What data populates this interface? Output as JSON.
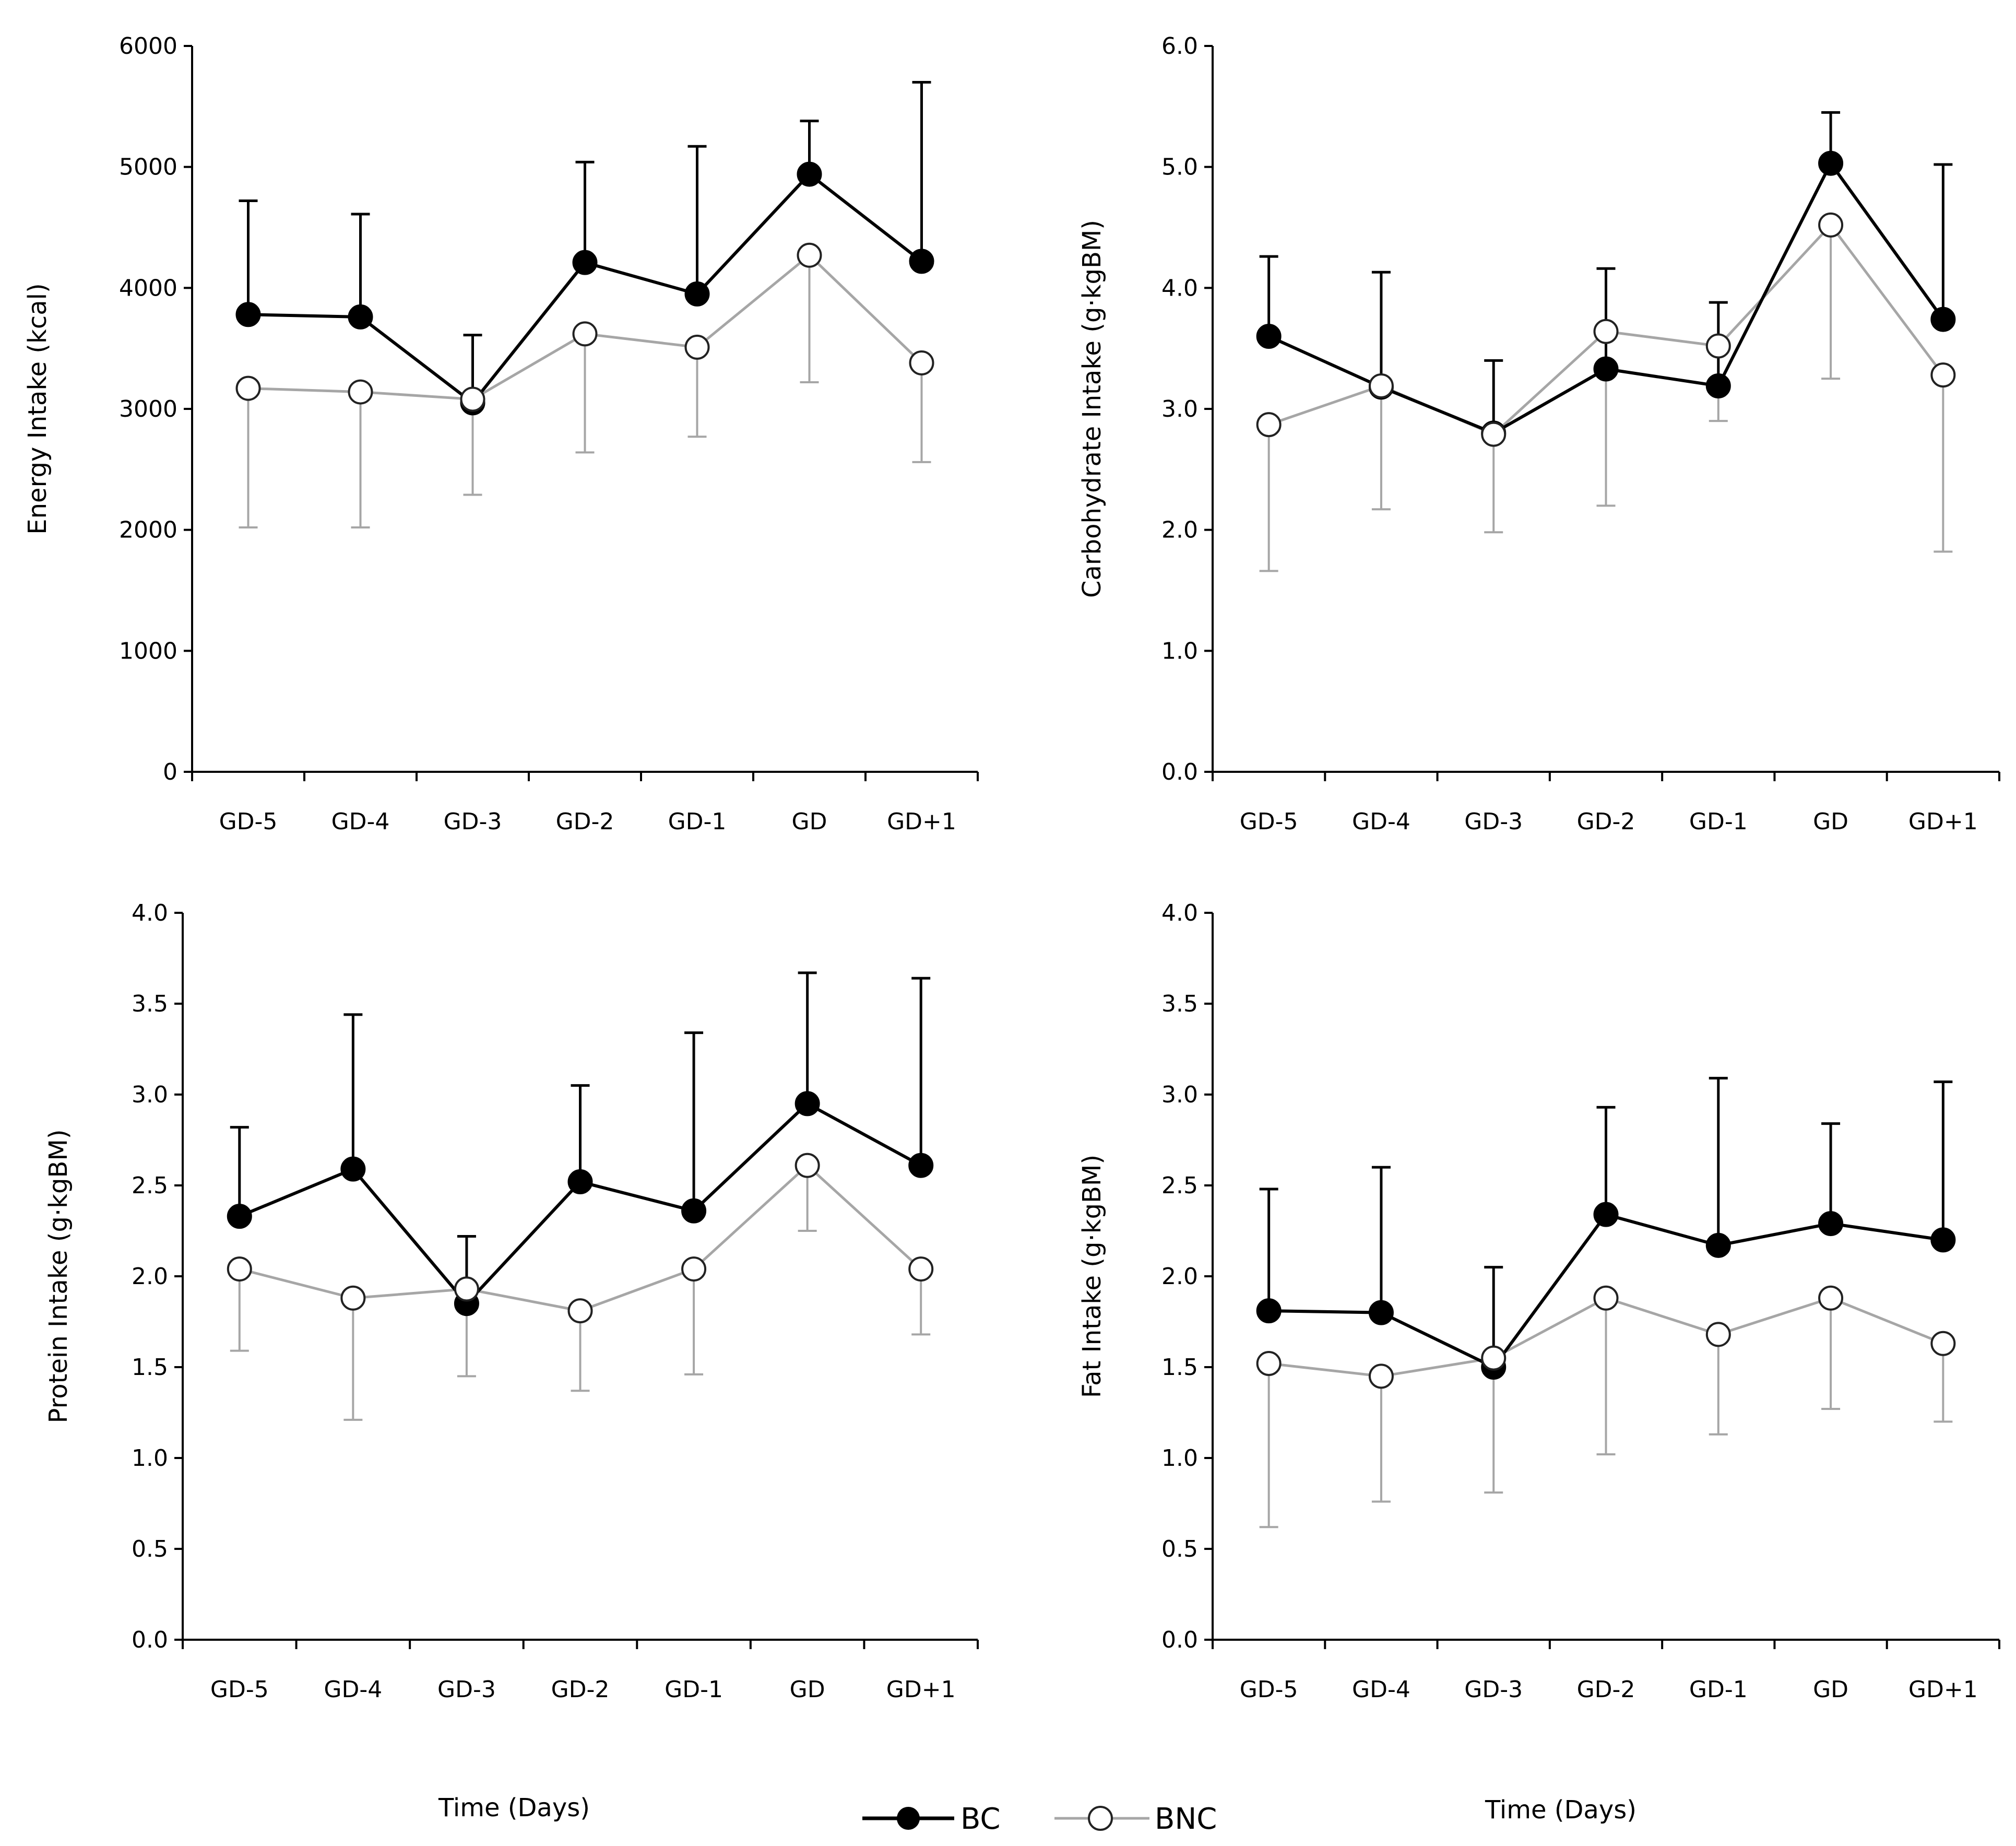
{
  "colors": {
    "bc": "#000000",
    "bnc": "#a6a6a6",
    "axis": "#000000",
    "marker_fill_bnc": "#ffffff"
  },
  "xlabels": [
    "Time (Days)",
    "Time (Days)"
  ],
  "legend": [
    {
      "key": "bc",
      "label": "BC"
    },
    {
      "key": "bnc",
      "label": "BNC"
    }
  ],
  "chart_data": [
    {
      "type": "line",
      "ylabel": "Energy Intake (kcal)",
      "categories": [
        "GD-5",
        "GD-4",
        "GD-3",
        "GD-2",
        "GD-1",
        "GD",
        "GD+1"
      ],
      "ylim": [
        0,
        6000
      ],
      "yticks": [
        "0",
        "1000",
        "2000",
        "3000",
        "4000",
        "5000",
        "6000"
      ],
      "series": [
        {
          "name": "BC",
          "values": [
            3780,
            3760,
            3050,
            4210,
            3950,
            4940,
            4220
          ],
          "error_upper": [
            4720,
            4610,
            3610,
            5040,
            5170,
            5380,
            5700
          ]
        },
        {
          "name": "BNC",
          "values": [
            3170,
            3140,
            3080,
            3620,
            3510,
            4270,
            3380
          ],
          "error_lower": [
            2020,
            2020,
            2290,
            2640,
            2770,
            3220,
            2560
          ]
        }
      ]
    },
    {
      "type": "line",
      "ylabel": "Carbohydrate Intake (g·kgBM)",
      "categories": [
        "GD-5",
        "GD-4",
        "GD-3",
        "GD-2",
        "GD-1",
        "GD",
        "GD+1"
      ],
      "ylim": [
        0,
        6
      ],
      "yticks": [
        "0.0",
        "1.0",
        "2.0",
        "3.0",
        "4.0",
        "5.0",
        "6.0"
      ],
      "series": [
        {
          "name": "BC",
          "values": [
            3.6,
            3.18,
            2.8,
            3.33,
            3.19,
            5.03,
            3.74
          ],
          "error_upper": [
            4.26,
            4.13,
            3.4,
            4.16,
            3.88,
            5.45,
            5.02
          ]
        },
        {
          "name": "BNC",
          "values": [
            2.87,
            3.19,
            2.79,
            3.64,
            3.52,
            4.52,
            3.28
          ],
          "error_lower": [
            1.66,
            2.17,
            1.98,
            2.2,
            2.9,
            3.25,
            1.82
          ]
        }
      ]
    },
    {
      "type": "line",
      "ylabel": "Protein Intake (g·kgBM)",
      "categories": [
        "GD-5",
        "GD-4",
        "GD-3",
        "GD-2",
        "GD-1",
        "GD",
        "GD+1"
      ],
      "ylim": [
        0,
        4
      ],
      "yticks": [
        "0.0",
        "0.5",
        "1.0",
        "1.5",
        "2.0",
        "2.5",
        "3.0",
        "3.5",
        "4.0"
      ],
      "series": [
        {
          "name": "BC",
          "values": [
            2.33,
            2.59,
            1.85,
            2.52,
            2.36,
            2.95,
            2.61
          ],
          "error_upper": [
            2.82,
            3.44,
            2.22,
            3.05,
            3.34,
            3.67,
            3.64
          ]
        },
        {
          "name": "BNC",
          "values": [
            2.04,
            1.88,
            1.93,
            1.81,
            2.04,
            2.61,
            2.04
          ],
          "error_lower": [
            1.59,
            1.21,
            1.45,
            1.37,
            1.46,
            2.25,
            1.68
          ]
        }
      ]
    },
    {
      "type": "line",
      "ylabel": "Fat Intake (g·kgBM)",
      "categories": [
        "GD-5",
        "GD-4",
        "GD-3",
        "GD-2",
        "GD-1",
        "GD",
        "GD+1"
      ],
      "ylim": [
        0,
        4
      ],
      "yticks": [
        "0.0",
        "0.5",
        "1.0",
        "1.5",
        "2.0",
        "2.5",
        "3.0",
        "3.5",
        "4.0"
      ],
      "series": [
        {
          "name": "BC",
          "values": [
            1.81,
            1.8,
            1.5,
            2.34,
            2.17,
            2.29,
            2.2
          ],
          "error_upper": [
            2.48,
            2.6,
            2.05,
            2.93,
            3.09,
            2.84,
            3.07
          ]
        },
        {
          "name": "BNC",
          "values": [
            1.52,
            1.45,
            1.55,
            1.88,
            1.68,
            1.88,
            1.63
          ],
          "error_lower": [
            0.62,
            0.76,
            0.81,
            1.02,
            1.13,
            1.27,
            1.2
          ]
        }
      ]
    }
  ]
}
